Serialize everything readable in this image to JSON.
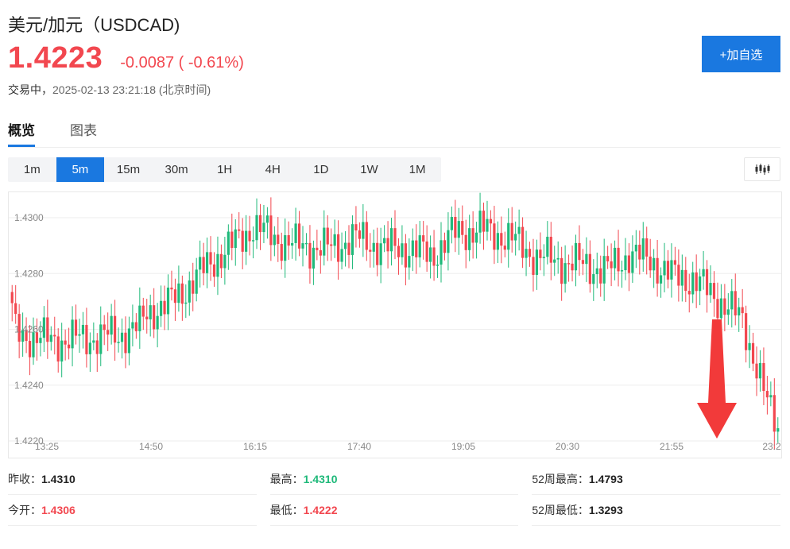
{
  "header": {
    "title": "美元/加元（USDCAD)",
    "price": "1.4223",
    "change": "-0.0087 ( -0.61%)",
    "status_label": "交易中，",
    "status_time": "2025-02-13 23:21:18 (北京时间)",
    "add_button": "+加自选"
  },
  "tabs": [
    {
      "label": "概览",
      "active": true
    },
    {
      "label": "图表",
      "active": false
    }
  ],
  "periods": [
    {
      "label": "1m",
      "active": false
    },
    {
      "label": "5m",
      "active": true
    },
    {
      "label": "15m",
      "active": false
    },
    {
      "label": "30m",
      "active": false
    },
    {
      "label": "1H",
      "active": false
    },
    {
      "label": "4H",
      "active": false
    },
    {
      "label": "1D",
      "active": false
    },
    {
      "label": "1W",
      "active": false
    },
    {
      "label": "1M",
      "active": false
    }
  ],
  "colors": {
    "up": "#1fb97a",
    "down": "#f2474f",
    "accent": "#1a78e0",
    "arrow": "#f23a3a"
  },
  "chart_data": {
    "type": "candlestick",
    "y_ticks": [
      "1.4300",
      "1.4280",
      "1.4260",
      "1.4240",
      "1.4220"
    ],
    "x_ticks": [
      "13:25",
      "14:50",
      "16:15",
      "17:40",
      "19:05",
      "20:30",
      "21:55",
      "23:2"
    ],
    "ylim": [
      1.4218,
      1.4308
    ],
    "grid": true,
    "annotation": "down-arrow",
    "anchors": [
      [
        0,
        1.4266
      ],
      [
        1,
        1.4259
      ],
      [
        6,
        1.4257
      ],
      [
        12,
        1.4256
      ],
      [
        22,
        1.4257
      ],
      [
        30,
        1.4258
      ],
      [
        36,
        1.4261
      ],
      [
        38,
        1.4266
      ],
      [
        44,
        1.4269
      ],
      [
        50,
        1.4276
      ],
      [
        56,
        1.4284
      ],
      [
        64,
        1.4292
      ],
      [
        68,
        1.4297
      ],
      [
        74,
        1.4293
      ],
      [
        80,
        1.429
      ],
      [
        90,
        1.4289
      ],
      [
        96,
        1.4293
      ],
      [
        106,
        1.4289
      ],
      [
        113,
        1.4289
      ],
      [
        118,
        1.4286
      ],
      [
        124,
        1.4294
      ],
      [
        132,
        1.4296
      ],
      [
        140,
        1.4293
      ],
      [
        148,
        1.4286
      ],
      [
        156,
        1.4284
      ],
      [
        162,
        1.4283
      ],
      [
        168,
        1.4281
      ],
      [
        174,
        1.4287
      ],
      [
        180,
        1.4285
      ],
      [
        186,
        1.4279
      ],
      [
        192,
        1.4278
      ],
      [
        198,
        1.4272
      ],
      [
        202,
        1.4268
      ],
      [
        206,
        1.4263
      ],
      [
        210,
        1.4247
      ],
      [
        213,
        1.4233
      ],
      [
        216,
        1.4225
      ]
    ],
    "candle_count": 217
  },
  "stats": [
    [
      {
        "label": "昨收：",
        "value": "1.4310",
        "tone": "neutral"
      },
      {
        "label": "最高：",
        "value": "1.4310",
        "tone": "up"
      },
      {
        "label": "52周最高：",
        "value": "1.4793",
        "tone": "neutral"
      }
    ],
    [
      {
        "label": "今开：",
        "value": "1.4306",
        "tone": "down"
      },
      {
        "label": "最低：",
        "value": "1.4222",
        "tone": "down"
      },
      {
        "label": "52周最低：",
        "value": "1.3293",
        "tone": "neutral"
      }
    ]
  ]
}
